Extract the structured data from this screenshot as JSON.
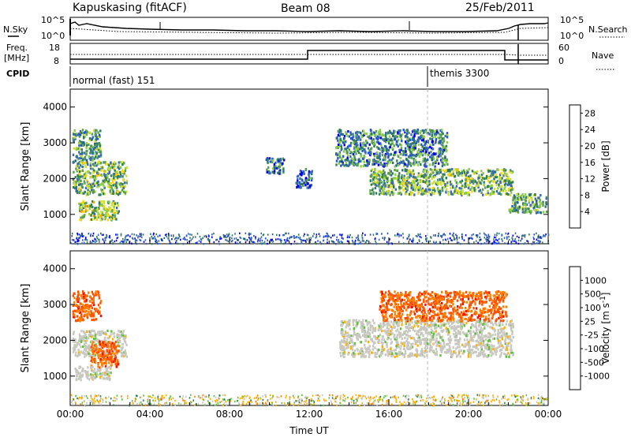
{
  "header": {
    "station": "Kapuskasing (fitACF)",
    "beam": "Beam 08",
    "date": "25/Feb/2011"
  },
  "noise_panel": {
    "left_label": "N.Sky",
    "right_label": "N.Search",
    "left_ticks": [
      "10^5",
      "10^0"
    ],
    "right_ticks": [
      "10^5",
      "10^0"
    ]
  },
  "freq_panel": {
    "left_label_line1": "Freq.",
    "left_label_line2": "[MHz]",
    "right_label": "Nave",
    "left_ticks": [
      18,
      8
    ],
    "right_ticks": [
      60,
      0
    ]
  },
  "cpid": {
    "label": "CPID",
    "modes": [
      {
        "name": "normal (fast) 151",
        "start_hour": 0,
        "end_hour": 18
      },
      {
        "name": "themis 3300",
        "start_hour": 18,
        "end_hour": 24
      }
    ]
  },
  "chart_data": [
    {
      "type": "heatmap",
      "quantity": "power",
      "ylabel": "Slant Range [km]",
      "ylim": [
        180,
        4500
      ],
      "yticks": [
        1000,
        2000,
        3000,
        4000
      ],
      "xlim": [
        0,
        24
      ],
      "colorbar": {
        "label": "Power [dB]",
        "ticks": [
          28,
          24,
          20,
          16,
          12,
          8,
          4
        ],
        "colors": [
          "#0000ee",
          "#2255cc",
          "#3a6ab0",
          "#2e7d5a",
          "#58a050",
          "#8ccd4a",
          "#d2e030",
          "#ffd400",
          "#ffa000",
          "#ff6a00",
          "#ff3000",
          "#e00000"
        ],
        "range": [
          0,
          30
        ]
      },
      "regions": [
        {
          "t": [
            0.1,
            1.6
          ],
          "r": [
            2400,
            3400
          ],
          "value": 10
        },
        {
          "t": [
            0.1,
            2.9
          ],
          "r": [
            1500,
            2500
          ],
          "value": 12
        },
        {
          "t": [
            0.4,
            2.5
          ],
          "r": [
            800,
            1400
          ],
          "value": 14
        },
        {
          "t": [
            9.8,
            10.8
          ],
          "r": [
            2100,
            2600
          ],
          "value": 6
        },
        {
          "t": [
            11.3,
            12.2
          ],
          "r": [
            1700,
            2300
          ],
          "value": 5
        },
        {
          "t": [
            13.3,
            19.0
          ],
          "r": [
            2300,
            3400
          ],
          "value": 8
        },
        {
          "t": [
            15.0,
            22.3
          ],
          "r": [
            1500,
            2300
          ],
          "value": 12
        },
        {
          "t": [
            22.0,
            24.0
          ],
          "r": [
            1000,
            1600
          ],
          "value": 10
        }
      ]
    },
    {
      "type": "heatmap",
      "quantity": "velocity",
      "xlabel": "Time UT",
      "ylabel": "Slant Range [km]",
      "ylim": [
        180,
        4500
      ],
      "yticks": [
        1000,
        2000,
        3000,
        4000
      ],
      "xlim": [
        0,
        24
      ],
      "xticks": [
        "00:00",
        "04:00",
        "08:00",
        "12:00",
        "16:00",
        "20:00",
        "00:00"
      ],
      "colorbar": {
        "label": "Velocity [m s^-1]",
        "ticks": [
          "1000",
          "500",
          "100",
          "25",
          "-25",
          "-100",
          "-500",
          "-1000"
        ],
        "colors": [
          "#2233cc",
          "#3060c0",
          "#2a7d4a",
          "#60c040",
          "#c8c8c0",
          "#c8c8c0",
          "#ffb000",
          "#ff8000",
          "#ff5000",
          "#ee1000"
        ]
      },
      "regions": [
        {
          "t": [
            0.1,
            1.6
          ],
          "r": [
            2500,
            3400
          ],
          "value": -500
        },
        {
          "t": [
            0.1,
            2.9
          ],
          "r": [
            1500,
            2300
          ],
          "value": 0
        },
        {
          "t": [
            1.0,
            2.5
          ],
          "r": [
            1200,
            2000
          ],
          "value": -500
        },
        {
          "t": [
            0.2,
            2.1
          ],
          "r": [
            850,
            1300
          ],
          "value": 0
        },
        {
          "t": [
            13.5,
            22.3
          ],
          "r": [
            1500,
            2600
          ],
          "value": 0
        },
        {
          "t": [
            15.5,
            22.0
          ],
          "r": [
            2500,
            3400
          ],
          "value": -500
        }
      ]
    }
  ]
}
